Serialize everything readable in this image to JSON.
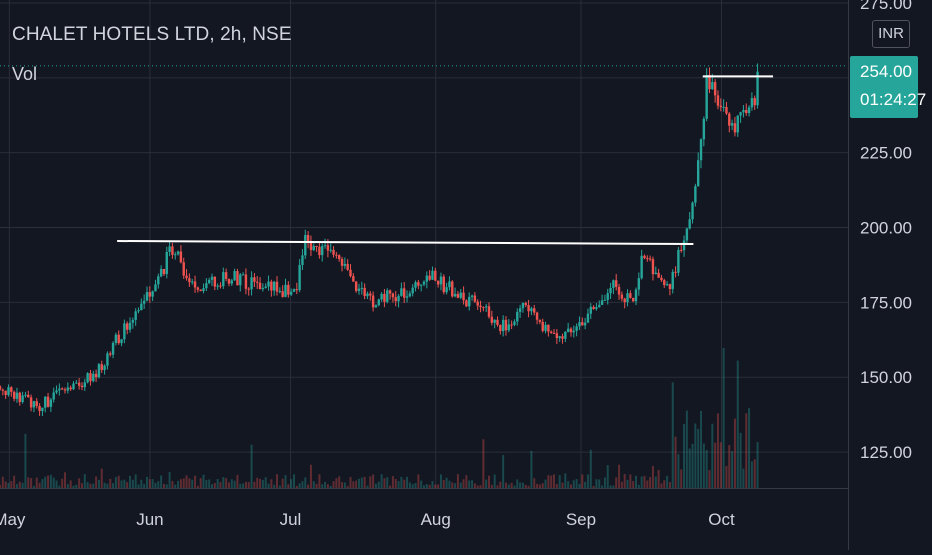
{
  "header": {
    "symbol_title": "CHALET HOTELS LTD, 2h, NSE",
    "volume_label": "Vol"
  },
  "price_axis": {
    "currency": "INR",
    "current_price": "254.00",
    "countdown": "01:24:27"
  },
  "colors": {
    "background": "#131722",
    "up": "#26a69a",
    "down": "#ef5350",
    "grid": "#2a2e39",
    "text": "#d1d4dc",
    "trendline": "#ffffff"
  },
  "chart_data": {
    "type": "candlestick",
    "y_axis": {
      "ticks": [
        275.0,
        250.0,
        225.0,
        200.0,
        175.0,
        150.0,
        125.0
      ],
      "tick_labels": [
        "275.00",
        "250.00",
        "225.00",
        "200.00",
        "175.00",
        "150.00",
        "125.00"
      ],
      "range": [
        113,
        276
      ]
    },
    "x_axis": {
      "ticks": [
        "May",
        "Jun",
        "Jul",
        "Aug",
        "Sep",
        "Oct"
      ],
      "tick_dates": [
        "2022-05-02",
        "2022-06-01",
        "2022-07-01",
        "2022-08-01",
        "2022-09-01",
        "2022-10-01"
      ],
      "range": [
        "2022-04-30",
        "2022-10-28"
      ]
    },
    "grid": true,
    "last_price": 254.0,
    "trendlines": [
      {
        "from": {
          "date": "2022-05-25",
          "price": 195.5
        },
        "to": {
          "date": "2022-09-25",
          "price": 194.5
        }
      },
      {
        "from": {
          "date": "2022-09-27",
          "price": 250.5
        },
        "to": {
          "date": "2022-10-12",
          "price": 250.5
        }
      }
    ],
    "price_path": [
      {
        "date": "2022-04-30",
        "close": 147
      },
      {
        "date": "2022-05-08",
        "close": 140
      },
      {
        "date": "2022-05-14",
        "close": 146
      },
      {
        "date": "2022-05-20",
        "close": 150
      },
      {
        "date": "2022-05-26",
        "close": 165
      },
      {
        "date": "2022-06-02",
        "close": 180
      },
      {
        "date": "2022-06-06",
        "close": 194
      },
      {
        "date": "2022-06-10",
        "close": 180
      },
      {
        "date": "2022-06-18",
        "close": 184
      },
      {
        "date": "2022-06-26",
        "close": 180
      },
      {
        "date": "2022-07-02",
        "close": 178
      },
      {
        "date": "2022-07-04",
        "close": 196
      },
      {
        "date": "2022-07-12",
        "close": 188
      },
      {
        "date": "2022-07-18",
        "close": 175
      },
      {
        "date": "2022-07-26",
        "close": 178
      },
      {
        "date": "2022-07-30",
        "close": 185
      },
      {
        "date": "2022-08-06",
        "close": 177
      },
      {
        "date": "2022-08-12",
        "close": 172
      },
      {
        "date": "2022-08-16",
        "close": 166
      },
      {
        "date": "2022-08-20",
        "close": 175
      },
      {
        "date": "2022-08-26",
        "close": 163
      },
      {
        "date": "2022-09-02",
        "close": 170
      },
      {
        "date": "2022-09-08",
        "close": 180
      },
      {
        "date": "2022-09-12",
        "close": 176
      },
      {
        "date": "2022-09-14",
        "close": 190
      },
      {
        "date": "2022-09-20",
        "close": 180
      },
      {
        "date": "2022-09-23",
        "close": 198
      },
      {
        "date": "2022-09-25",
        "close": 210
      },
      {
        "date": "2022-09-28",
        "close": 250
      },
      {
        "date": "2022-10-03",
        "close": 233
      },
      {
        "date": "2022-10-06",
        "close": 238
      },
      {
        "date": "2022-10-08",
        "close": 242
      },
      {
        "date": "2022-10-09",
        "close": 254
      }
    ]
  }
}
